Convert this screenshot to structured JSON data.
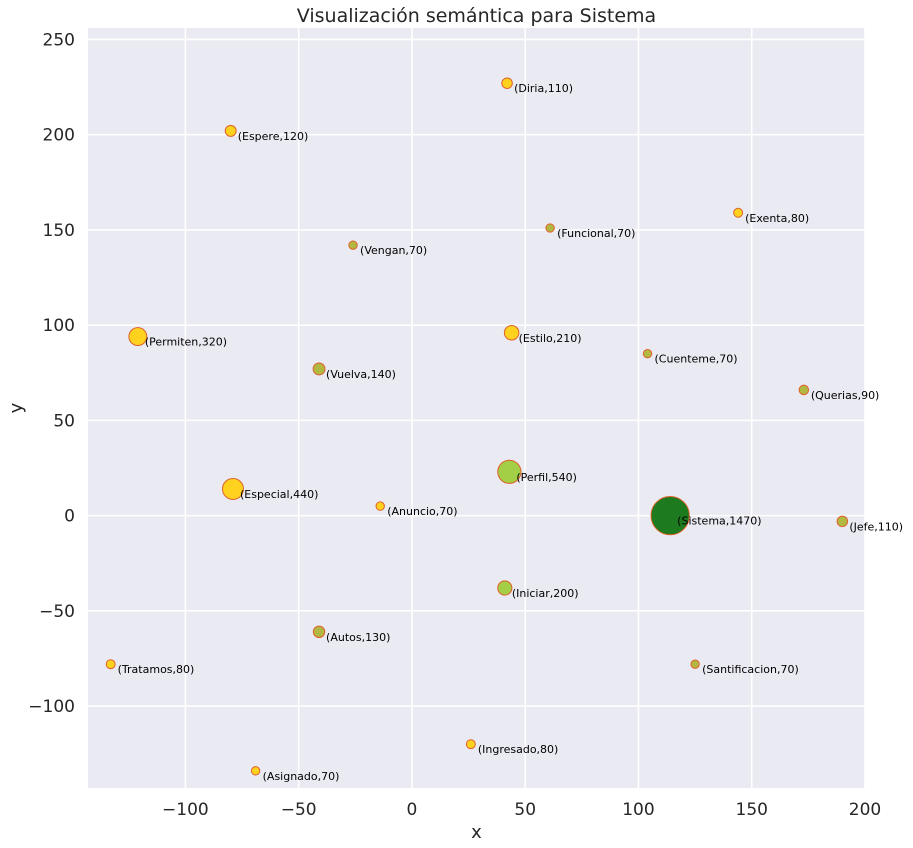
{
  "chart_data": {
    "type": "scatter",
    "title": "Visualización semántica para Sistema",
    "xlabel": "x",
    "ylabel": "y",
    "xlim": [
      -143,
      200
    ],
    "ylim": [
      -143,
      256
    ],
    "xticks": [
      -100,
      -50,
      0,
      50,
      100,
      150,
      200
    ],
    "yticks": [
      -100,
      -50,
      0,
      50,
      100,
      150,
      200,
      250
    ],
    "xtick_labels": [
      "−100",
      "−50",
      "0",
      "50",
      "100",
      "150",
      "200"
    ],
    "ytick_labels": [
      "−100",
      "−50",
      "0",
      "50",
      "100",
      "150",
      "200",
      "250"
    ],
    "grid": true,
    "colors": {
      "background": "#eaeaf2",
      "grid": "#ffffff",
      "yellow": "#ffd21f",
      "lightgreen": "#a2cf45",
      "olive": "#b2b943",
      "darkgreen": "#1e7a1e",
      "edge": "#e0602a"
    },
    "points": [
      {
        "word": "Diria",
        "value": 110,
        "x": 42,
        "y": 227,
        "color": "yellow",
        "label": "(Diria,110)"
      },
      {
        "word": "Espere",
        "value": 120,
        "x": -80,
        "y": 202,
        "color": "yellow",
        "label": "(Espere,120)"
      },
      {
        "word": "Exenta",
        "value": 80,
        "x": 144,
        "y": 159,
        "color": "yellow",
        "label": "(Exenta,80)"
      },
      {
        "word": "Funcional",
        "value": 70,
        "x": 61,
        "y": 151,
        "color": "olive",
        "label": "(Funcional,70)"
      },
      {
        "word": "Vengan",
        "value": 70,
        "x": -26,
        "y": 142,
        "color": "olive",
        "label": "(Vengan,70)"
      },
      {
        "word": "Permiten",
        "value": 320,
        "x": -121,
        "y": 94,
        "color": "yellow",
        "label": "(Permiten,320)"
      },
      {
        "word": "Estilo",
        "value": 210,
        "x": 44,
        "y": 96,
        "color": "yellow",
        "label": "(Estilo,210)"
      },
      {
        "word": "Cuenteme",
        "value": 70,
        "x": 104,
        "y": 85,
        "color": "olive",
        "label": "(Cuenteme,70)"
      },
      {
        "word": "Vuelva",
        "value": 140,
        "x": -41,
        "y": 77,
        "color": "olive",
        "label": "(Vuelva,140)"
      },
      {
        "word": "Querias",
        "value": 90,
        "x": 173,
        "y": 66,
        "color": "olive",
        "label": "(Querias,90)"
      },
      {
        "word": "Perfil",
        "value": 540,
        "x": 43,
        "y": 23,
        "color": "lightgreen",
        "label": "(Perfil,540)"
      },
      {
        "word": "Especial",
        "value": 440,
        "x": -79,
        "y": 14,
        "color": "yellow",
        "label": "(Especial,440)"
      },
      {
        "word": "Anuncio",
        "value": 70,
        "x": -14,
        "y": 5,
        "color": "yellow",
        "label": "(Anuncio,70)"
      },
      {
        "word": "Sistema",
        "value": 1470,
        "x": 114,
        "y": 0,
        "color": "darkgreen",
        "label": "(Sistema,1470)"
      },
      {
        "word": "Jefe",
        "value": 110,
        "x": 190,
        "y": -3,
        "color": "olive",
        "label": "(Jefe,110)"
      },
      {
        "word": "Iniciar",
        "value": 200,
        "x": 41,
        "y": -38,
        "color": "lightgreen",
        "label": "(Iniciar,200)"
      },
      {
        "word": "Autos",
        "value": 130,
        "x": -41,
        "y": -61,
        "color": "olive",
        "label": "(Autos,130)"
      },
      {
        "word": "Tratamos",
        "value": 80,
        "x": -133,
        "y": -78,
        "color": "yellow",
        "label": "(Tratamos,80)"
      },
      {
        "word": "Santificacion",
        "value": 70,
        "x": 125,
        "y": -78,
        "color": "olive",
        "label": "(Santificacion,70)"
      },
      {
        "word": "Ingresado",
        "value": 80,
        "x": 26,
        "y": -120,
        "color": "yellow",
        "label": "(Ingresado,80)"
      },
      {
        "word": "Asignado",
        "value": 70,
        "x": -69,
        "y": -134,
        "color": "yellow",
        "label": "(Asignado,70)"
      }
    ]
  }
}
